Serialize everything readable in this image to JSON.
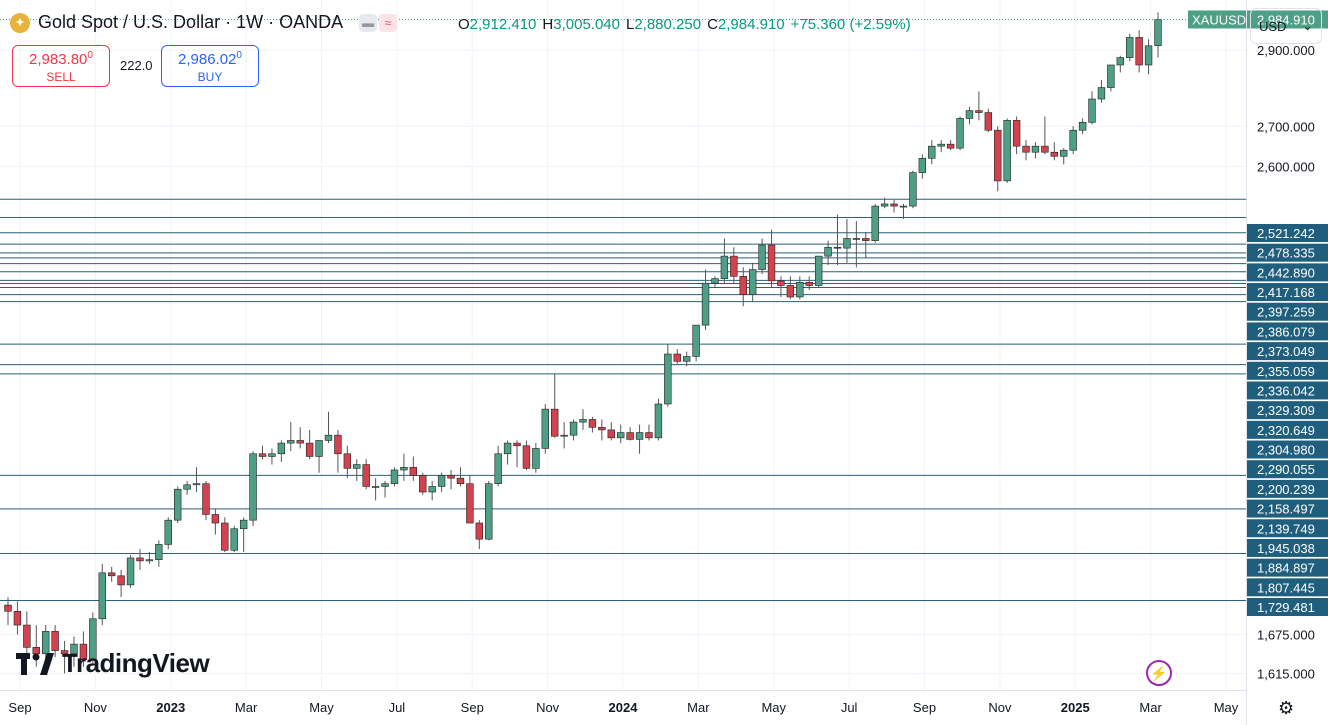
{
  "header": {
    "coin_icon": "gold-coin-icon",
    "title": "Gold Spot / U.S. Dollar · 1W · OANDA",
    "ohlc": {
      "o_label": "O",
      "o": "2,912.410",
      "h_label": "H",
      "h": "3,005.040",
      "l_label": "L",
      "l": "2,880.250",
      "c_label": "C",
      "c": "2,984.910",
      "change": "+75.360 (+2.59%)"
    }
  },
  "trade": {
    "sell_price": "2,983.80",
    "sell_sup": "0",
    "sell_label": "SELL",
    "spread": "222.0",
    "buy_price": "2,986.02",
    "buy_sup": "0",
    "buy_label": "BUY"
  },
  "currency": {
    "label": "USD",
    "icon": "chevron-down-icon"
  },
  "branding": {
    "logo_text": "TradingView"
  },
  "colors": {
    "up": "#4e9f86",
    "down": "#d2434f",
    "hline": "#2c5f7a",
    "grid": "#f0f3fa"
  },
  "chart_data": {
    "type": "candlestick",
    "symbol": "XAUUSD",
    "last_price": 2984.91,
    "ylim": [
      1590,
      3040
    ],
    "y_tick_labels": [
      "2,900.000",
      "2,700.000",
      "2,600.000",
      "1,675.000",
      "1,615.000"
    ],
    "y_ticks": [
      2900,
      2700,
      2600,
      1675,
      1615
    ],
    "x_tick_labels": [
      "Sep",
      "Nov",
      "2023",
      "Mar",
      "May",
      "Jul",
      "Sep",
      "Nov",
      "2024",
      "Mar",
      "May",
      "Jul",
      "Sep",
      "Nov",
      "2025",
      "Mar",
      "May"
    ],
    "level_labels": [
      "2,521.242",
      "2,478.335",
      "2,442.890",
      "2,417.168",
      "2,397.259",
      "2,386.079",
      "2,373.049",
      "2,355.059",
      "2,336.042",
      "2,329.309",
      "2,320.649",
      "2,304.980",
      "2,290.055",
      "2,200.239",
      "2,158.497",
      "2,139.749",
      "1,945.038",
      "1,884.897",
      "1,807.445",
      "1,729.481"
    ],
    "levels": [
      2521.242,
      2478.335,
      2442.89,
      2417.168,
      2397.259,
      2386.079,
      2373.049,
      2355.059,
      2336.042,
      2329.309,
      2320.649,
      2304.98,
      2290.055,
      2200.239,
      2158.497,
      2139.749,
      1945.038,
      1884.897,
      1807.445,
      1729.481
    ],
    "candles": [
      {
        "o": 1722,
        "h": 1735,
        "l": 1690,
        "c": 1712
      },
      {
        "o": 1712,
        "h": 1728,
        "l": 1675,
        "c": 1690
      },
      {
        "o": 1690,
        "h": 1712,
        "l": 1645,
        "c": 1655
      },
      {
        "o": 1655,
        "h": 1690,
        "l": 1625,
        "c": 1645
      },
      {
        "o": 1645,
        "h": 1690,
        "l": 1630,
        "c": 1680
      },
      {
        "o": 1680,
        "h": 1690,
        "l": 1640,
        "c": 1650
      },
      {
        "o": 1650,
        "h": 1665,
        "l": 1615,
        "c": 1645
      },
      {
        "o": 1645,
        "h": 1672,
        "l": 1625,
        "c": 1660
      },
      {
        "o": 1660,
        "h": 1680,
        "l": 1625,
        "c": 1636
      },
      {
        "o": 1636,
        "h": 1710,
        "l": 1630,
        "c": 1700
      },
      {
        "o": 1700,
        "h": 1790,
        "l": 1690,
        "c": 1775
      },
      {
        "o": 1775,
        "h": 1785,
        "l": 1760,
        "c": 1770
      },
      {
        "o": 1770,
        "h": 1780,
        "l": 1735,
        "c": 1755
      },
      {
        "o": 1755,
        "h": 1805,
        "l": 1750,
        "c": 1800
      },
      {
        "o": 1800,
        "h": 1815,
        "l": 1780,
        "c": 1795
      },
      {
        "o": 1795,
        "h": 1810,
        "l": 1790,
        "c": 1797
      },
      {
        "o": 1797,
        "h": 1830,
        "l": 1785,
        "c": 1823
      },
      {
        "o": 1823,
        "h": 1870,
        "l": 1815,
        "c": 1865
      },
      {
        "o": 1865,
        "h": 1925,
        "l": 1860,
        "c": 1920
      },
      {
        "o": 1920,
        "h": 1935,
        "l": 1910,
        "c": 1928
      },
      {
        "o": 1928,
        "h": 1960,
        "l": 1915,
        "c": 1930
      },
      {
        "o": 1930,
        "h": 1935,
        "l": 1865,
        "c": 1875
      },
      {
        "o": 1875,
        "h": 1885,
        "l": 1840,
        "c": 1860
      },
      {
        "o": 1860,
        "h": 1870,
        "l": 1810,
        "c": 1813
      },
      {
        "o": 1813,
        "h": 1855,
        "l": 1810,
        "c": 1850
      },
      {
        "o": 1850,
        "h": 1870,
        "l": 1810,
        "c": 1865
      },
      {
        "o": 1865,
        "h": 1990,
        "l": 1855,
        "c": 1985
      },
      {
        "o": 1985,
        "h": 2000,
        "l": 1975,
        "c": 1980
      },
      {
        "o": 1980,
        "h": 1995,
        "l": 1965,
        "c": 1985
      },
      {
        "o": 1985,
        "h": 2010,
        "l": 1970,
        "c": 2005
      },
      {
        "o": 2005,
        "h": 2045,
        "l": 1990,
        "c": 2010
      },
      {
        "o": 2010,
        "h": 2035,
        "l": 1995,
        "c": 2005
      },
      {
        "o": 2005,
        "h": 2030,
        "l": 1975,
        "c": 1980
      },
      {
        "o": 1980,
        "h": 2010,
        "l": 1950,
        "c": 2010
      },
      {
        "o": 2010,
        "h": 2065,
        "l": 2005,
        "c": 2020
      },
      {
        "o": 2020,
        "h": 2030,
        "l": 1950,
        "c": 1985
      },
      {
        "o": 1985,
        "h": 2000,
        "l": 1940,
        "c": 1958
      },
      {
        "o": 1958,
        "h": 1975,
        "l": 1935,
        "c": 1965
      },
      {
        "o": 1965,
        "h": 1975,
        "l": 1920,
        "c": 1925
      },
      {
        "o": 1925,
        "h": 1940,
        "l": 1900,
        "c": 1925
      },
      {
        "o": 1925,
        "h": 1935,
        "l": 1905,
        "c": 1930
      },
      {
        "o": 1930,
        "h": 1960,
        "l": 1925,
        "c": 1955
      },
      {
        "o": 1955,
        "h": 1985,
        "l": 1935,
        "c": 1960
      },
      {
        "o": 1960,
        "h": 1980,
        "l": 1935,
        "c": 1945
      },
      {
        "o": 1945,
        "h": 1950,
        "l": 1910,
        "c": 1915
      },
      {
        "o": 1915,
        "h": 1935,
        "l": 1900,
        "c": 1925
      },
      {
        "o": 1925,
        "h": 1950,
        "l": 1915,
        "c": 1945
      },
      {
        "o": 1945,
        "h": 1955,
        "l": 1920,
        "c": 1940
      },
      {
        "o": 1940,
        "h": 1960,
        "l": 1925,
        "c": 1930
      },
      {
        "o": 1930,
        "h": 1945,
        "l": 1860,
        "c": 1860
      },
      {
        "o": 1860,
        "h": 1865,
        "l": 1815,
        "c": 1832
      },
      {
        "o": 1832,
        "h": 1935,
        "l": 1830,
        "c": 1930
      },
      {
        "o": 1930,
        "h": 2000,
        "l": 1925,
        "c": 1985
      },
      {
        "o": 1985,
        "h": 2010,
        "l": 1965,
        "c": 2005
      },
      {
        "o": 2005,
        "h": 2010,
        "l": 1960,
        "c": 2000
      },
      {
        "o": 2000,
        "h": 2010,
        "l": 1955,
        "c": 1958
      },
      {
        "o": 1958,
        "h": 2005,
        "l": 1950,
        "c": 1995
      },
      {
        "o": 1995,
        "h": 2080,
        "l": 1985,
        "c": 2070
      },
      {
        "o": 2070,
        "h": 2140,
        "l": 2015,
        "c": 2018
      },
      {
        "o": 2018,
        "h": 2045,
        "l": 1995,
        "c": 2020
      },
      {
        "o": 2020,
        "h": 2050,
        "l": 2010,
        "c": 2045
      },
      {
        "o": 2045,
        "h": 2070,
        "l": 2030,
        "c": 2050
      },
      {
        "o": 2050,
        "h": 2055,
        "l": 2025,
        "c": 2035
      },
      {
        "o": 2035,
        "h": 2050,
        "l": 2010,
        "c": 2030
      },
      {
        "o": 2030,
        "h": 2045,
        "l": 2010,
        "c": 2015
      },
      {
        "o": 2015,
        "h": 2040,
        "l": 2005,
        "c": 2025
      },
      {
        "o": 2025,
        "h": 2035,
        "l": 2010,
        "c": 2012
      },
      {
        "o": 2012,
        "h": 2040,
        "l": 1985,
        "c": 2025
      },
      {
        "o": 2025,
        "h": 2040,
        "l": 2010,
        "c": 2015
      },
      {
        "o": 2015,
        "h": 2090,
        "l": 2010,
        "c": 2080
      },
      {
        "o": 2080,
        "h": 2200,
        "l": 2075,
        "c": 2180
      },
      {
        "o": 2180,
        "h": 2190,
        "l": 2160,
        "c": 2165
      },
      {
        "o": 2165,
        "h": 2185,
        "l": 2155,
        "c": 2175
      },
      {
        "o": 2175,
        "h": 2240,
        "l": 2165,
        "c": 2240
      },
      {
        "o": 2240,
        "h": 2360,
        "l": 2230,
        "c": 2330
      },
      {
        "o": 2330,
        "h": 2345,
        "l": 2320,
        "c": 2340
      },
      {
        "o": 2340,
        "h": 2430,
        "l": 2330,
        "c": 2390
      },
      {
        "o": 2390,
        "h": 2410,
        "l": 2330,
        "c": 2345
      },
      {
        "o": 2345,
        "h": 2365,
        "l": 2280,
        "c": 2305
      },
      {
        "o": 2305,
        "h": 2375,
        "l": 2290,
        "c": 2360
      },
      {
        "o": 2360,
        "h": 2430,
        "l": 2350,
        "c": 2415
      },
      {
        "o": 2415,
        "h": 2450,
        "l": 2320,
        "c": 2335
      },
      {
        "o": 2335,
        "h": 2345,
        "l": 2300,
        "c": 2325
      },
      {
        "o": 2325,
        "h": 2345,
        "l": 2295,
        "c": 2300
      },
      {
        "o": 2300,
        "h": 2345,
        "l": 2295,
        "c": 2332
      },
      {
        "o": 2332,
        "h": 2345,
        "l": 2315,
        "c": 2325
      },
      {
        "o": 2325,
        "h": 2390,
        "l": 2320,
        "c": 2390
      },
      {
        "o": 2390,
        "h": 2425,
        "l": 2370,
        "c": 2410
      },
      {
        "o": 2410,
        "h": 2485,
        "l": 2370,
        "c": 2408
      },
      {
        "o": 2408,
        "h": 2475,
        "l": 2375,
        "c": 2430
      },
      {
        "o": 2430,
        "h": 2470,
        "l": 2365,
        "c": 2430
      },
      {
        "o": 2430,
        "h": 2445,
        "l": 2385,
        "c": 2425
      },
      {
        "o": 2425,
        "h": 2510,
        "l": 2420,
        "c": 2505
      },
      {
        "o": 2505,
        "h": 2525,
        "l": 2500,
        "c": 2510
      },
      {
        "o": 2510,
        "h": 2520,
        "l": 2490,
        "c": 2505
      },
      {
        "o": 2505,
        "h": 2510,
        "l": 2475,
        "c": 2505
      },
      {
        "o": 2505,
        "h": 2590,
        "l": 2500,
        "c": 2585
      },
      {
        "o": 2585,
        "h": 2630,
        "l": 2570,
        "c": 2620
      },
      {
        "o": 2620,
        "h": 2665,
        "l": 2605,
        "c": 2650
      },
      {
        "o": 2650,
        "h": 2665,
        "l": 2635,
        "c": 2655
      },
      {
        "o": 2655,
        "h": 2665,
        "l": 2640,
        "c": 2645
      },
      {
        "o": 2645,
        "h": 2725,
        "l": 2640,
        "c": 2720
      },
      {
        "o": 2720,
        "h": 2750,
        "l": 2705,
        "c": 2740
      },
      {
        "o": 2740,
        "h": 2790,
        "l": 2715,
        "c": 2735
      },
      {
        "o": 2735,
        "h": 2745,
        "l": 2685,
        "c": 2690
      },
      {
        "o": 2690,
        "h": 2700,
        "l": 2540,
        "c": 2565
      },
      {
        "o": 2565,
        "h": 2720,
        "l": 2560,
        "c": 2715
      },
      {
        "o": 2715,
        "h": 2725,
        "l": 2630,
        "c": 2650
      },
      {
        "o": 2650,
        "h": 2665,
        "l": 2615,
        "c": 2635
      },
      {
        "o": 2635,
        "h": 2660,
        "l": 2620,
        "c": 2650
      },
      {
        "o": 2650,
        "h": 2725,
        "l": 2630,
        "c": 2635
      },
      {
        "o": 2635,
        "h": 2660,
        "l": 2615,
        "c": 2625
      },
      {
        "o": 2625,
        "h": 2645,
        "l": 2605,
        "c": 2640
      },
      {
        "o": 2640,
        "h": 2700,
        "l": 2630,
        "c": 2690
      },
      {
        "o": 2690,
        "h": 2720,
        "l": 2680,
        "c": 2710
      },
      {
        "o": 2710,
        "h": 2790,
        "l": 2705,
        "c": 2770
      },
      {
        "o": 2770,
        "h": 2820,
        "l": 2760,
        "c": 2800
      },
      {
        "o": 2800,
        "h": 2860,
        "l": 2790,
        "c": 2860
      },
      {
        "o": 2860,
        "h": 2885,
        "l": 2840,
        "c": 2880
      },
      {
        "o": 2880,
        "h": 2945,
        "l": 2870,
        "c": 2935
      },
      {
        "o": 2935,
        "h": 2955,
        "l": 2840,
        "c": 2860
      },
      {
        "o": 2860,
        "h": 2930,
        "l": 2835,
        "c": 2912
      },
      {
        "o": 2912.41,
        "h": 3005.04,
        "l": 2880.25,
        "c": 2984.91
      }
    ]
  }
}
